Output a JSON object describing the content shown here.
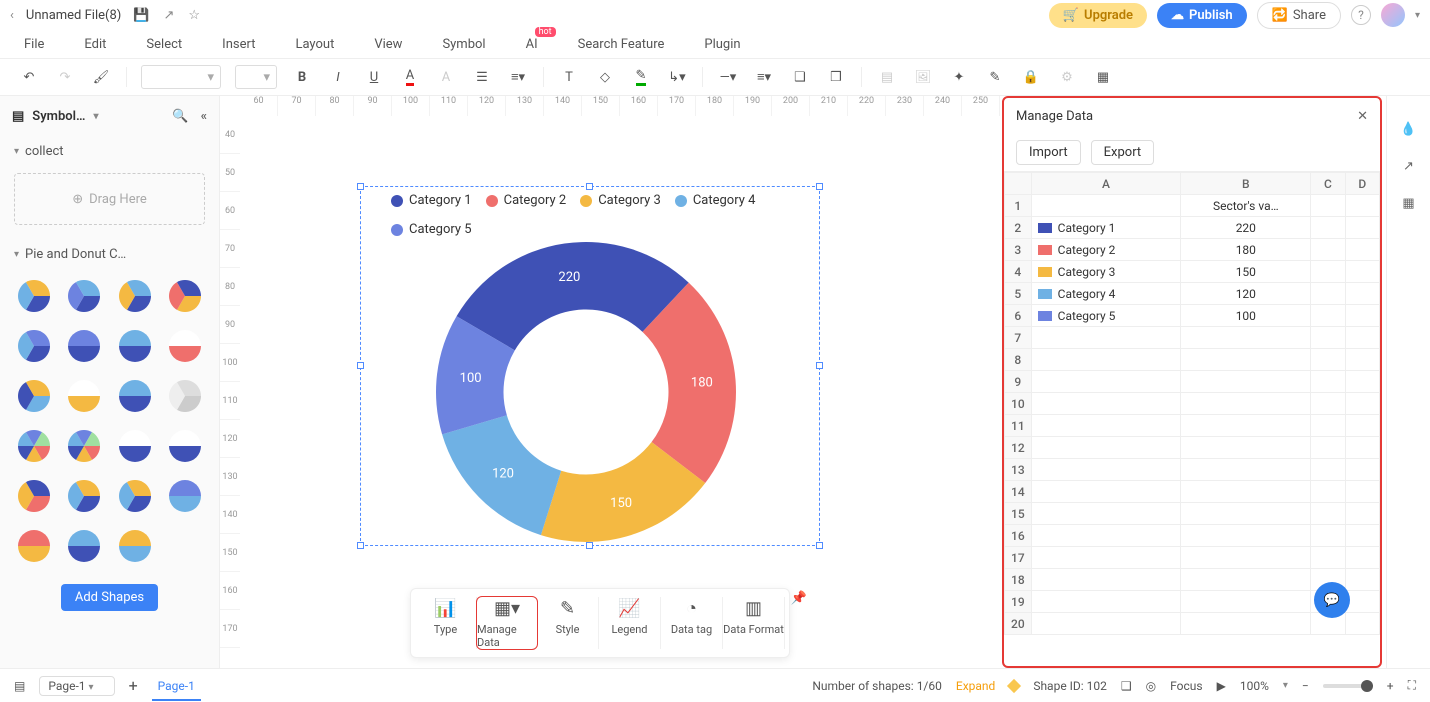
{
  "titlebar": {
    "filename": "Unnamed File(8)",
    "upgrade": "Upgrade",
    "publish": "Publish",
    "share": "Share"
  },
  "menu": {
    "file": "File",
    "edit": "Edit",
    "select": "Select",
    "insert": "Insert",
    "layout": "Layout",
    "view": "View",
    "symbol": "Symbol",
    "ai": "AI",
    "search": "Search Feature",
    "plugin": "Plugin"
  },
  "sidebar": {
    "title": "Symbol…",
    "collect": "collect",
    "drag": "Drag Here",
    "section2": "Pie and Donut C…",
    "addshapes": "Add Shapes"
  },
  "chart": {
    "type": "donut",
    "legend_labels": [
      "Category 1",
      "Category 2",
      "Category 3",
      "Category 4",
      "Category 5"
    ],
    "values": [
      220,
      180,
      150,
      120,
      100
    ],
    "colors": [
      "#3f51b5",
      "#ef6f6c",
      "#f4b942",
      "#6fb1e4",
      "#6d83e0"
    ],
    "label_color": "#ffffff",
    "inner_radius_ratio": 0.55,
    "background": "#ffffff"
  },
  "chart_toolbar": {
    "type": "Type",
    "manage": "Manage Data",
    "style": "Style",
    "legend": "Legend",
    "datatag": "Data tag",
    "dataformat": "Data Format"
  },
  "data_panel": {
    "title": "Manage Data",
    "import": "Import",
    "export": "Export",
    "columns": [
      "A",
      "B",
      "C",
      "D"
    ],
    "header_row_b": "Sector's va…",
    "rows": [
      {
        "label": "Category 1",
        "value": "220",
        "color": "#3f51b5"
      },
      {
        "label": "Category 2",
        "value": "180",
        "color": "#ef6f6c"
      },
      {
        "label": "Category 3",
        "value": "150",
        "color": "#f4b942"
      },
      {
        "label": "Category 4",
        "value": "120",
        "color": "#6fb1e4"
      },
      {
        "label": "Category 5",
        "value": "100",
        "color": "#6d83e0"
      }
    ],
    "total_rows": 20
  },
  "status": {
    "page_select": "Page-1",
    "page_tab": "Page-1",
    "shapes_count": "Number of shapes: 1/60",
    "expand": "Expand",
    "shape_id": "Shape ID: 102",
    "focus": "Focus",
    "zoom": "100%"
  },
  "ruler": {
    "h": [
      "60",
      "70",
      "80",
      "90",
      "100",
      "110",
      "120",
      "130",
      "140",
      "150",
      "160",
      "170",
      "180",
      "190",
      "200",
      "210",
      "220",
      "230",
      "240",
      "250"
    ],
    "v": [
      "40",
      "50",
      "60",
      "70",
      "80",
      "90",
      "100",
      "110",
      "120",
      "130",
      "140",
      "150",
      "160",
      "170"
    ]
  }
}
